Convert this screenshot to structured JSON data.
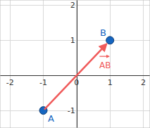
{
  "chart_data": {
    "type": "scatter",
    "points": [
      {
        "label": "A",
        "x": -1,
        "y": -1
      },
      {
        "label": "B",
        "x": 1,
        "y": 1
      }
    ],
    "vector": {
      "label": "AB",
      "from": "A",
      "to": "B",
      "color": "#f05a5a"
    },
    "color": "#1565c0",
    "xlim": [
      -2.3,
      2.2
    ],
    "ylim": [
      -1.5,
      2.15
    ],
    "xticks": [
      -2,
      -1,
      0,
      1,
      2
    ],
    "yticks": [
      -1,
      1,
      2
    ],
    "grid": true
  }
}
